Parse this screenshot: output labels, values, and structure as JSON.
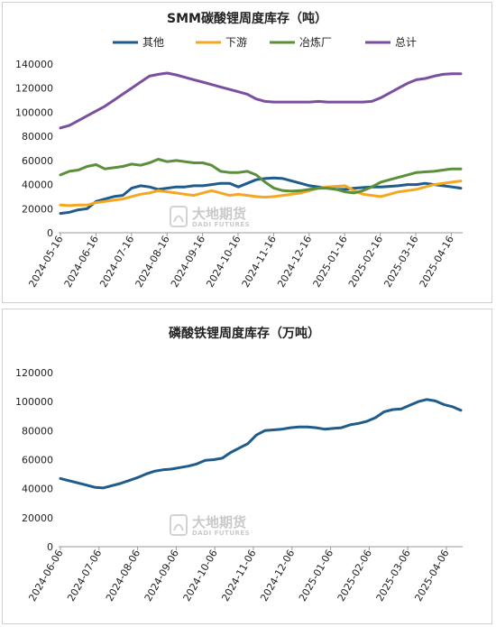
{
  "chart_data": [
    {
      "type": "line",
      "title": "SMM碳酸锂周度库存（吨）",
      "ylim": [
        0,
        140000
      ],
      "y_ticks": [
        "0",
        "20000",
        "40000",
        "60000",
        "80000",
        "100000",
        "120000",
        "140000"
      ],
      "x_labels": [
        "2024-05-16",
        "2024-06-16",
        "2024-07-16",
        "2024-08-16",
        "2024-09-16",
        "2024-10-16",
        "2024-11-16",
        "2024-12-16",
        "2025-01-16",
        "2025-02-16",
        "2025-03-16",
        "2025-04-16"
      ],
      "legend": "top",
      "series": [
        {
          "name": "其他",
          "color": "#1f5c8c",
          "values": [
            16000,
            17000,
            19000,
            20000,
            26000,
            28000,
            30000,
            31000,
            37000,
            39000,
            38000,
            36000,
            37000,
            38000,
            38000,
            39000,
            39000,
            40000,
            41000,
            41000,
            38000,
            41000,
            44000,
            45000,
            45500,
            45000,
            43000,
            41000,
            39000,
            38000,
            37000,
            36000,
            36000,
            37000,
            37500,
            38000,
            38000,
            38500,
            39000,
            40000,
            40000,
            41000,
            40000,
            39000,
            38000,
            37000
          ]
        },
        {
          "name": "下游",
          "color": "#f5a623",
          "values": [
            23000,
            22500,
            23000,
            23000,
            25000,
            26000,
            27000,
            28000,
            30000,
            32000,
            33000,
            35000,
            34000,
            33000,
            32000,
            31000,
            33000,
            35000,
            33000,
            31000,
            32000,
            31000,
            30000,
            29500,
            30000,
            31000,
            32000,
            33000,
            35000,
            37000,
            38000,
            38500,
            39000,
            35000,
            32000,
            31000,
            30000,
            32000,
            34000,
            35000,
            36000,
            38000,
            40000,
            41000,
            42000,
            43000
          ]
        },
        {
          "name": "冶炼厂",
          "color": "#5b8f3a",
          "values": [
            48000,
            51000,
            52000,
            55000,
            56500,
            53000,
            54000,
            55000,
            57000,
            56000,
            58000,
            61000,
            59000,
            60000,
            59000,
            58000,
            58000,
            56000,
            51000,
            50000,
            50000,
            51000,
            48000,
            42000,
            37000,
            35000,
            34500,
            35000,
            36000,
            37000,
            37000,
            36000,
            34000,
            33000,
            35000,
            38000,
            42000,
            44000,
            46000,
            48000,
            50000,
            50500,
            51000,
            52000,
            53000,
            53000
          ]
        },
        {
          "name": "总计",
          "color": "#7b4fa0",
          "values": [
            87000,
            89000,
            93000,
            97000,
            101000,
            105000,
            110000,
            115000,
            120000,
            125000,
            130000,
            131500,
            132500,
            131000,
            129000,
            127000,
            125000,
            123000,
            121000,
            119000,
            117000,
            115000,
            111000,
            109000,
            108500,
            108500,
            108500,
            108500,
            108500,
            109000,
            108500,
            108500,
            108500,
            108500,
            108500,
            109000,
            112000,
            116000,
            120000,
            124000,
            127000,
            128000,
            130000,
            131500,
            132000,
            132000
          ]
        }
      ]
    },
    {
      "type": "line",
      "title": "磷酸铁锂周度库存（万吨）",
      "ylim": [
        0,
        120000
      ],
      "y_ticks": [
        "0",
        "20000",
        "40000",
        "60000",
        "80000",
        "100000",
        "120000"
      ],
      "x_labels": [
        "2024-06-06",
        "2024-07-06",
        "2024-08-06",
        "2024-09-06",
        "2024-10-06",
        "2024-11-06",
        "2024-12-06",
        "2025-01-06",
        "2025-02-06",
        "2025-03-06",
        "2025-04-06"
      ],
      "legend": "none",
      "series": [
        {
          "color": "#1f5c8c",
          "values": [
            47000,
            45500,
            44000,
            42500,
            41000,
            40500,
            42000,
            43500,
            45500,
            47500,
            50000,
            52000,
            53000,
            53500,
            54500,
            55500,
            57000,
            59500,
            60000,
            61000,
            65000,
            68000,
            71000,
            77000,
            80000,
            80500,
            81000,
            82000,
            82500,
            82500,
            82000,
            81000,
            81500,
            82000,
            84000,
            85000,
            86500,
            89000,
            93000,
            94500,
            95000,
            97500,
            100000,
            101500,
            100500,
            98000,
            96500,
            94000
          ]
        }
      ]
    }
  ],
  "watermark": {
    "name": "大地期货",
    "sub": "DADI FUTURES"
  }
}
